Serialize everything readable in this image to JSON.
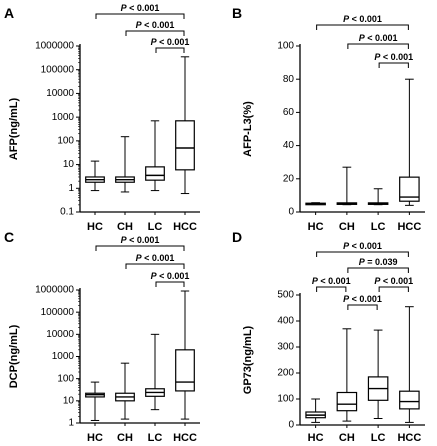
{
  "chart_data": [
    {
      "type": "box",
      "panel": "A",
      "ylabel": "AFP(ng/mL)",
      "scale": "log",
      "ylim": [
        0.1,
        1000000
      ],
      "yticks": [
        "0.1",
        "1",
        "10",
        "100",
        "1000",
        "10000",
        "100000",
        "1000000"
      ],
      "categories": [
        "HC",
        "CH",
        "LC",
        "HCC"
      ],
      "boxes": [
        {
          "name": "HC",
          "min": 0.8,
          "q1": 1.8,
          "median": 2.3,
          "q3": 3.0,
          "max": 14
        },
        {
          "name": "CH",
          "min": 0.7,
          "q1": 1.8,
          "median": 2.3,
          "q3": 3.0,
          "max": 150
        },
        {
          "name": "LC",
          "min": 0.8,
          "q1": 2.2,
          "median": 3.5,
          "q3": 8,
          "max": 700
        },
        {
          "name": "HCC",
          "min": 0.6,
          "q1": 6,
          "median": 50,
          "q3": 700,
          "max": 350000
        }
      ],
      "comparisons": [
        {
          "from": "HC",
          "to": "HCC",
          "label": "P < 0.001"
        },
        {
          "from": "CH",
          "to": "HCC",
          "label": "P < 0.001"
        },
        {
          "from": "LC",
          "to": "HCC",
          "label": "P < 0.001"
        }
      ]
    },
    {
      "type": "box",
      "panel": "B",
      "ylabel": "AFP-L3(%)",
      "scale": "linear",
      "ylim": [
        0,
        100
      ],
      "yticks": [
        "0",
        "20",
        "40",
        "60",
        "80",
        "100"
      ],
      "categories": [
        "HC",
        "CH",
        "LC",
        "HCC"
      ],
      "boxes": [
        {
          "name": "HC",
          "min": 4.5,
          "q1": 4.8,
          "median": 5,
          "q3": 5.3,
          "max": 5.6
        },
        {
          "name": "CH",
          "min": 4.4,
          "q1": 4.8,
          "median": 5,
          "q3": 5.5,
          "max": 27
        },
        {
          "name": "LC",
          "min": 4.4,
          "q1": 4.8,
          "median": 5,
          "q3": 5.5,
          "max": 14
        },
        {
          "name": "HCC",
          "min": 4,
          "q1": 6.5,
          "median": 9,
          "q3": 21,
          "max": 80
        }
      ],
      "comparisons": [
        {
          "from": "HC",
          "to": "HCC",
          "label": "P < 0.001"
        },
        {
          "from": "CH",
          "to": "HCC",
          "label": "P < 0.001"
        },
        {
          "from": "LC",
          "to": "HCC",
          "label": "P < 0.001"
        }
      ]
    },
    {
      "type": "box",
      "panel": "C",
      "ylabel": "DCP(ng/mL)",
      "scale": "log",
      "ylim": [
        1,
        1000000
      ],
      "yticks": [
        "1",
        "10",
        "100",
        "1000",
        "10000",
        "100000",
        "1000000"
      ],
      "categories": [
        "HC",
        "CH",
        "LC",
        "HCC"
      ],
      "boxes": [
        {
          "name": "HC",
          "min": 1.3,
          "q1": 15,
          "median": 19,
          "q3": 22,
          "max": 70
        },
        {
          "name": "CH",
          "min": 1.5,
          "q1": 10,
          "median": 15,
          "q3": 22,
          "max": 500
        },
        {
          "name": "LC",
          "min": 4,
          "q1": 16,
          "median": 24,
          "q3": 35,
          "max": 10000
        },
        {
          "name": "HCC",
          "min": 1.5,
          "q1": 28,
          "median": 70,
          "q3": 2000,
          "max": 900000
        }
      ],
      "comparisons": [
        {
          "from": "HC",
          "to": "HCC",
          "label": "P < 0.001"
        },
        {
          "from": "CH",
          "to": "HCC",
          "label": "P < 0.001"
        },
        {
          "from": "LC",
          "to": "HCC",
          "label": "P < 0.001"
        }
      ]
    },
    {
      "type": "box",
      "panel": "D",
      "ylabel": "GP73(ng/mL)",
      "scale": "linear",
      "ylim": [
        0,
        500
      ],
      "yticks": [
        "0",
        "100",
        "200",
        "300",
        "400",
        "500"
      ],
      "categories": [
        "HC",
        "CH",
        "LC",
        "HCC"
      ],
      "boxes": [
        {
          "name": "HC",
          "min": 10,
          "q1": 28,
          "median": 38,
          "q3": 50,
          "max": 100
        },
        {
          "name": "CH",
          "min": 15,
          "q1": 55,
          "median": 80,
          "q3": 125,
          "max": 370
        },
        {
          "name": "LC",
          "min": 25,
          "q1": 95,
          "median": 140,
          "q3": 185,
          "max": 365
        },
        {
          "name": "HCC",
          "min": 10,
          "q1": 62,
          "median": 90,
          "q3": 130,
          "max": 455
        }
      ],
      "comparisons": [
        {
          "from": "HC",
          "to": "CH",
          "label": "P < 0.001"
        },
        {
          "from": "CH",
          "to": "LC",
          "label": "P < 0.001"
        },
        {
          "from": "LC",
          "to": "HCC",
          "label": "P < 0.001"
        },
        {
          "from": "CH",
          "to": "HCC",
          "label": "P = 0.039"
        },
        {
          "from": "HC",
          "to": "HCC",
          "label": "P < 0.001"
        }
      ]
    }
  ]
}
